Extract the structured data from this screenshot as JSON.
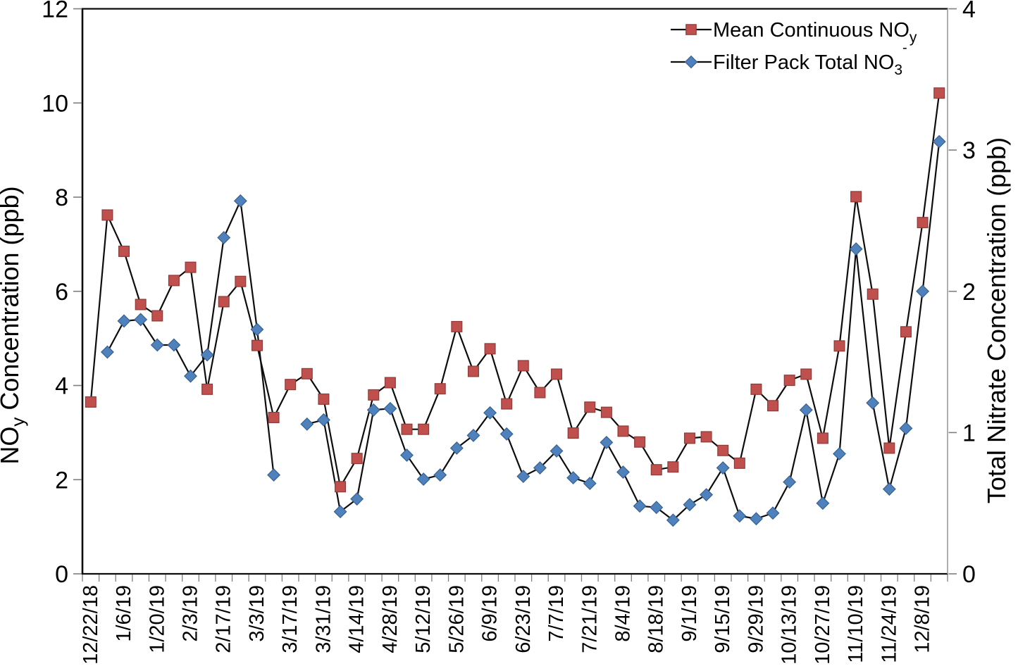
{
  "chart_data": {
    "type": "line",
    "title": "",
    "background": "#ffffff",
    "grid": "off",
    "legend_position": "top-right-inside",
    "x_axis": {
      "label": "",
      "label_every": 2,
      "categories": [
        "12/22/18",
        "12/29/18",
        "1/6/19",
        "1/13/19",
        "1/20/19",
        "1/27/19",
        "2/3/19",
        "2/10/19",
        "2/17/19",
        "2/24/19",
        "3/3/19",
        "3/10/19",
        "3/17/19",
        "3/24/19",
        "3/31/19",
        "4/7/19",
        "4/14/19",
        "4/21/19",
        "4/28/19",
        "5/5/19",
        "5/12/19",
        "5/19/19",
        "5/26/19",
        "6/2/19",
        "6/9/19",
        "6/16/19",
        "6/23/19",
        "6/30/19",
        "7/7/19",
        "7/14/19",
        "7/21/19",
        "7/28/19",
        "8/4/19",
        "8/11/19",
        "8/18/19",
        "8/25/19",
        "9/1/19",
        "9/8/19",
        "9/15/19",
        "9/22/19",
        "9/29/19",
        "10/6/19",
        "10/13/19",
        "10/20/19",
        "10/27/19",
        "11/3/19",
        "11/10/19",
        "11/17/19",
        "11/24/19",
        "12/1/19",
        "12/8/19",
        "12/15/19"
      ],
      "shown_tick_labels": [
        "12/22/18",
        "1/6/19",
        "1/20/19",
        "2/3/19",
        "2/17/19",
        "3/3/19",
        "3/17/19",
        "3/31/19",
        "4/14/19",
        "4/28/19",
        "5/12/19",
        "5/26/19",
        "6/9/19",
        "6/23/19",
        "7/7/19",
        "7/21/19",
        "8/4/19",
        "8/18/19",
        "9/1/19",
        "9/15/19",
        "9/29/19",
        "10/13/19",
        "10/27/19",
        "11/10/19",
        "11/24/19",
        "12/8/19"
      ]
    },
    "y_axis_left": {
      "label": "NOy Concentration (ppb)",
      "label_parts": [
        {
          "t": "NO"
        },
        {
          "t": "y",
          "sub": true
        },
        {
          "t": " Concentration (ppb)"
        }
      ],
      "min": 0,
      "max": 12,
      "ticks": [
        0,
        2,
        4,
        6,
        8,
        10,
        12
      ]
    },
    "y_axis_right": {
      "label": "Total Nitrate Concentration (ppb)",
      "label_parts": [
        {
          "t": "Total Nitrate Concentration (ppb)"
        }
      ],
      "min": 0,
      "max": 4,
      "ticks": [
        0,
        1,
        2,
        3,
        4
      ]
    },
    "series": [
      {
        "name": "Mean Continuous NOy",
        "name_parts": [
          {
            "t": "Mean Continuous NO"
          },
          {
            "t": "y",
            "sub": true
          }
        ],
        "axis": "left",
        "marker": "square",
        "marker_color": "#C0504D",
        "marker_edge": "#8E3A38",
        "line_color": "#0d0d0d",
        "values": [
          3.65,
          7.62,
          6.85,
          5.72,
          5.48,
          6.23,
          6.51,
          3.92,
          5.78,
          6.21,
          4.85,
          3.32,
          4.02,
          4.25,
          3.71,
          1.85,
          2.45,
          3.8,
          4.06,
          3.07,
          3.07,
          3.93,
          5.25,
          4.3,
          4.78,
          3.61,
          4.42,
          3.85,
          4.24,
          2.99,
          3.54,
          3.43,
          3.03,
          2.8,
          2.21,
          2.27,
          2.88,
          2.91,
          2.62,
          2.35,
          3.92,
          3.57,
          4.11,
          4.24,
          2.88,
          4.84,
          8.01,
          5.94,
          2.67,
          5.14,
          7.46,
          10.21
        ]
      },
      {
        "name": "Filter Pack Total NO3-",
        "name_parts": [
          {
            "t": "Filter Pack Total NO"
          },
          {
            "t": "3",
            "sub": true
          },
          {
            "t": "-",
            "sup": true
          }
        ],
        "axis": "right",
        "marker": "diamond",
        "marker_color": "#4F81BD",
        "marker_edge": "#38618F",
        "line_color": "#0d0d0d",
        "values": [
          null,
          1.57,
          1.79,
          1.8,
          1.62,
          1.62,
          1.4,
          1.55,
          2.38,
          2.64,
          1.73,
          0.7,
          null,
          1.06,
          1.09,
          0.44,
          0.53,
          1.16,
          1.17,
          0.84,
          0.67,
          0.7,
          0.89,
          0.98,
          1.14,
          0.99,
          0.69,
          0.75,
          0.87,
          0.68,
          0.64,
          0.93,
          0.72,
          0.48,
          0.47,
          0.38,
          0.49,
          0.56,
          0.75,
          0.41,
          0.39,
          0.43,
          0.65,
          1.16,
          0.5,
          0.85,
          2.3,
          1.21,
          0.6,
          1.03,
          2.0,
          3.06
        ]
      }
    ],
    "axis_colors": {
      "main_axis": "#0d0d0d",
      "right_spine": "#9a9a9a",
      "tick_mark": "#7f7f7f"
    }
  }
}
